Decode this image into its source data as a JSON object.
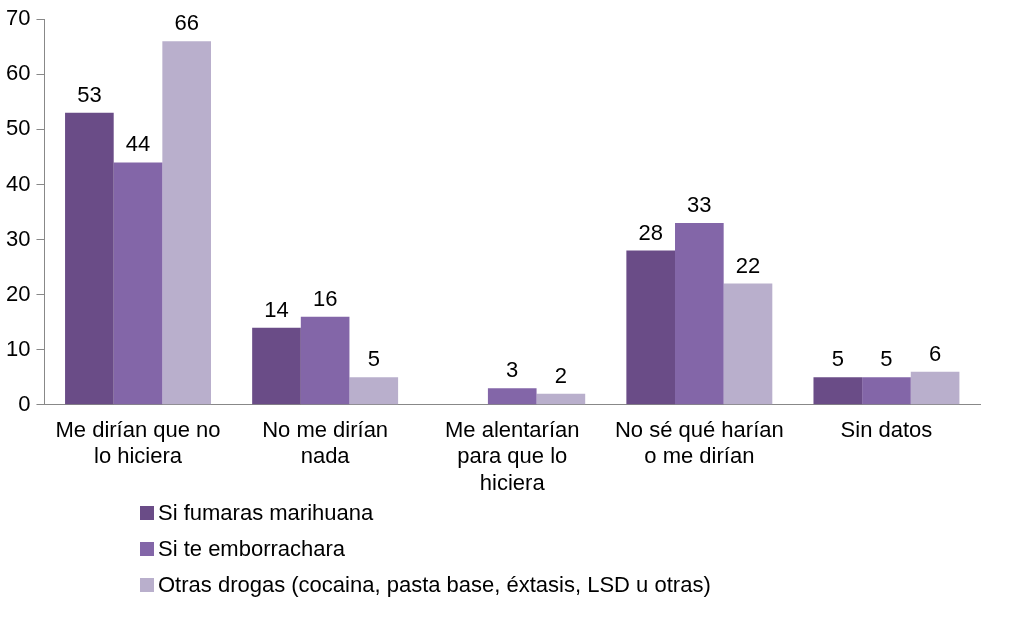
{
  "chart_data": {
    "type": "bar",
    "categories": [
      "Me dirían que no lo hiciera",
      "No me dirían nada",
      "Me alentarían para que lo hiciera",
      "No sé qué harían o me dirían",
      "Sin datos"
    ],
    "series": [
      {
        "name": "Si fumaras marihuana",
        "color": "#6a4c87",
        "values": [
          53,
          14,
          null,
          28,
          5
        ]
      },
      {
        "name": "Si te emborrachara",
        "color": "#8366a8",
        "values": [
          44,
          16,
          3,
          33,
          5
        ]
      },
      {
        "name": "Otras drogas (cocaina, pasta base, éxtasis, LSD u otras)",
        "color": "#b9afcc",
        "values": [
          66,
          5,
          2,
          22,
          6
        ]
      }
    ],
    "ylim": [
      0,
      70
    ],
    "yticks": [
      0,
      10,
      20,
      30,
      40,
      50,
      60,
      70
    ],
    "grid": false,
    "legend": "bottom",
    "data_labels": true
  }
}
